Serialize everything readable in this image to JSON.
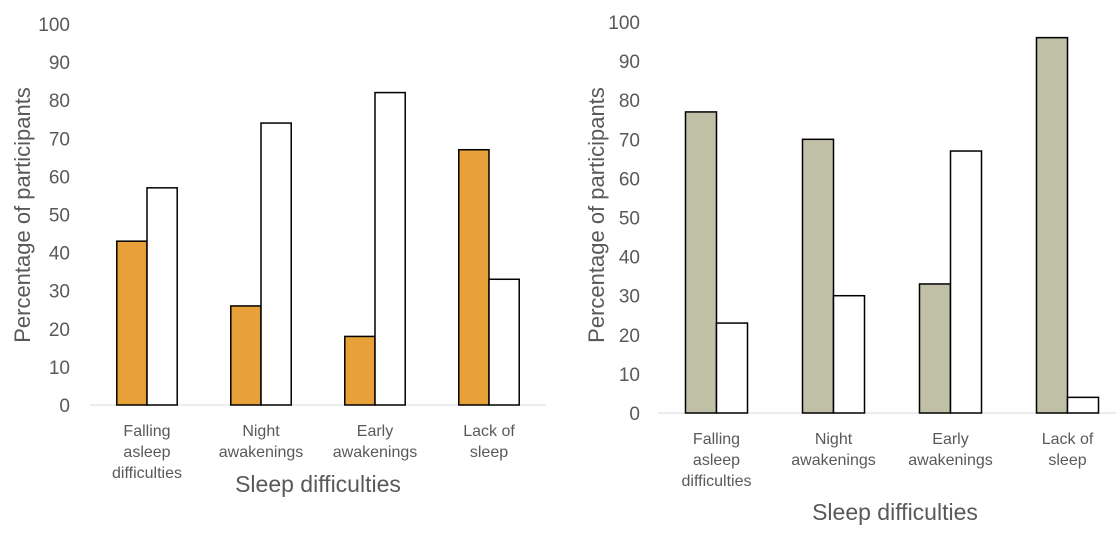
{
  "chart_data": [
    {
      "type": "bar",
      "categories": [
        [
          "Falling",
          "asleep",
          "difficulties"
        ],
        [
          "Night",
          "awakenings"
        ],
        [
          "Early",
          "awakenings"
        ],
        [
          "Lack of",
          "sleep"
        ]
      ],
      "series": [
        {
          "color": "#E8A038",
          "values": [
            43,
            26,
            18,
            67
          ]
        },
        {
          "color": "#FFFFFF",
          "values": [
            57,
            74,
            82,
            33
          ]
        }
      ],
      "ylim": [
        0,
        100
      ],
      "yticks": [
        0,
        10,
        20,
        30,
        40,
        50,
        60,
        70,
        80,
        90,
        100
      ],
      "xlabel": "Sleep difficulties",
      "ylabel": "Percentage of participants",
      "grid": false,
      "legend": "none"
    },
    {
      "type": "bar",
      "categories": [
        [
          "Falling",
          "asleep",
          "difficulties"
        ],
        [
          "Night",
          "awakenings"
        ],
        [
          "Early",
          "awakenings"
        ],
        [
          "Lack of",
          "sleep"
        ]
      ],
      "series": [
        {
          "color": "#C0C0A6",
          "values": [
            77,
            70,
            33,
            96
          ]
        },
        {
          "color": "#FFFFFF",
          "values": [
            23,
            30,
            67,
            4
          ]
        }
      ],
      "ylim": [
        0,
        100
      ],
      "yticks": [
        0,
        10,
        20,
        30,
        40,
        50,
        60,
        70,
        80,
        90,
        100
      ],
      "xlabel": "Sleep difficulties",
      "ylabel": "Percentage of participants",
      "grid": false,
      "legend": "none"
    }
  ]
}
